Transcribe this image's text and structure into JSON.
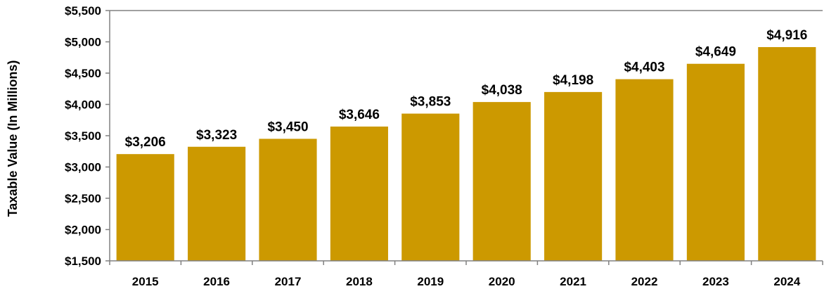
{
  "chart_data": {
    "type": "bar",
    "title": "",
    "xlabel": "",
    "ylabel": "Taxable Value (In Millions)",
    "categories": [
      "2015",
      "2016",
      "2017",
      "2018",
      "2019",
      "2020",
      "2021",
      "2022",
      "2023",
      "2024"
    ],
    "values": [
      3206,
      3323,
      3450,
      3646,
      3853,
      4038,
      4198,
      4403,
      4649,
      4916
    ],
    "data_labels": [
      "$3,206",
      "$3,323",
      "$3,450",
      "$3,646",
      "$3,853",
      "$4,038",
      "$4,198",
      "$4,403",
      "$4,649",
      "$4,916"
    ],
    "ylim": [
      1500,
      5500
    ],
    "y_ticks": [
      1500,
      2000,
      2500,
      3000,
      3500,
      4000,
      4500,
      5000,
      5500
    ],
    "y_tick_labels": [
      "$1,500",
      "$2,000",
      "$2,500",
      "$3,000",
      "$3,500",
      "$4,000",
      "$4,500",
      "$5,000",
      "$5,500"
    ],
    "grid": false,
    "legend": "none",
    "colors": {
      "bar": "#CC9900",
      "axis": "#808080",
      "text": "#000000"
    }
  }
}
